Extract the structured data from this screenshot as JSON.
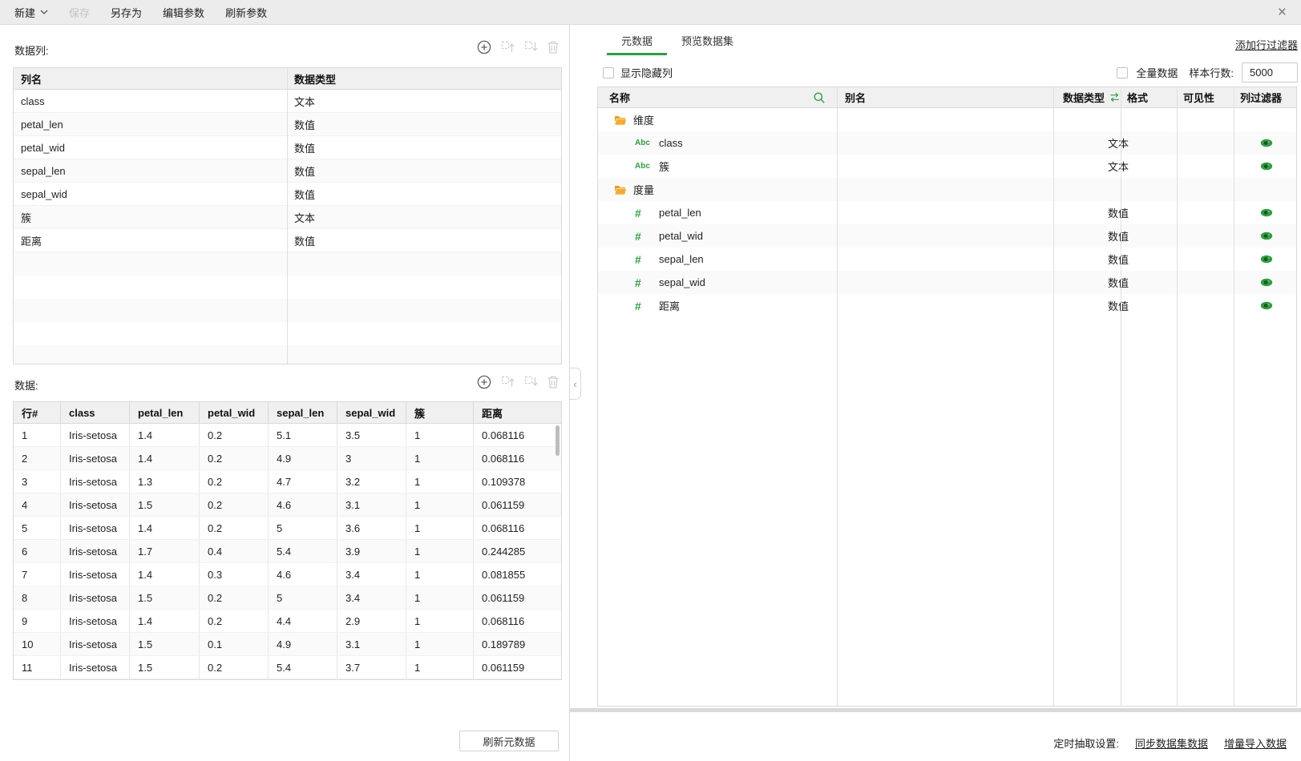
{
  "colors": {
    "accent_green": "#2aa13e",
    "folder_orange": "#f5a31c",
    "topbar_bg": "#ececec",
    "header_bg": "#f0f0f0"
  },
  "topbar": {
    "new_label": "新建",
    "save_label": "保存",
    "save_as_label": "另存为",
    "edit_params_label": "编辑参数",
    "refresh_params_label": "刷新参数",
    "close_glyph": "×"
  },
  "left": {
    "columns_section": {
      "label": "数据列:",
      "headers": [
        "列名",
        "数据类型"
      ],
      "rows": [
        [
          "class",
          "文本"
        ],
        [
          "petal_len",
          "数值"
        ],
        [
          "petal_wid",
          "数值"
        ],
        [
          "sepal_len",
          "数值"
        ],
        [
          "sepal_wid",
          "数值"
        ],
        [
          "簇",
          "文本"
        ],
        [
          "距离",
          "数值"
        ]
      ]
    },
    "data_section": {
      "label": "数据:",
      "headers": [
        "行#",
        "class",
        "petal_len",
        "petal_wid",
        "sepal_len",
        "sepal_wid",
        "簇",
        "距离"
      ],
      "rows": [
        [
          "1",
          "Iris-setosa",
          "1.4",
          "0.2",
          "5.1",
          "3.5",
          "1",
          "0.068116"
        ],
        [
          "2",
          "Iris-setosa",
          "1.4",
          "0.2",
          "4.9",
          "3",
          "1",
          "0.068116"
        ],
        [
          "3",
          "Iris-setosa",
          "1.3",
          "0.2",
          "4.7",
          "3.2",
          "1",
          "0.109378"
        ],
        [
          "4",
          "Iris-setosa",
          "1.5",
          "0.2",
          "4.6",
          "3.1",
          "1",
          "0.061159"
        ],
        [
          "5",
          "Iris-setosa",
          "1.4",
          "0.2",
          "5",
          "3.6",
          "1",
          "0.068116"
        ],
        [
          "6",
          "Iris-setosa",
          "1.7",
          "0.4",
          "5.4",
          "3.9",
          "1",
          "0.244285"
        ],
        [
          "7",
          "Iris-setosa",
          "1.4",
          "0.3",
          "4.6",
          "3.4",
          "1",
          "0.081855"
        ],
        [
          "8",
          "Iris-setosa",
          "1.5",
          "0.2",
          "5",
          "3.4",
          "1",
          "0.061159"
        ],
        [
          "9",
          "Iris-setosa",
          "1.4",
          "0.2",
          "4.4",
          "2.9",
          "1",
          "0.068116"
        ],
        [
          "10",
          "Iris-setosa",
          "1.5",
          "0.1",
          "4.9",
          "3.1",
          "1",
          "0.189789"
        ],
        [
          "11",
          "Iris-setosa",
          "1.5",
          "0.2",
          "5.4",
          "3.7",
          "1",
          "0.061159"
        ]
      ]
    },
    "refresh_metadata_label": "刷新元数据"
  },
  "right": {
    "tabs": {
      "metadata": "元数据",
      "preview": "预览数据集"
    },
    "add_row_filter_label": "添加行过滤器",
    "show_hidden_label": "显示隐藏列",
    "full_data_label": "全量数据",
    "sample_rows_label": "样本行数:",
    "sample_rows_value": "5000",
    "grid_headers": {
      "name": "名称",
      "alias": "别名",
      "dtype": "数据类型",
      "format": "格式",
      "visibility": "可见性",
      "col_filter": "列过滤器"
    },
    "tree": [
      {
        "type": "folder",
        "label": "维度"
      },
      {
        "type": "text",
        "label": "class",
        "dtype": "文本"
      },
      {
        "type": "text",
        "label": "簇",
        "dtype": "文本"
      },
      {
        "type": "folder",
        "label": "度量"
      },
      {
        "type": "number",
        "label": "petal_len",
        "dtype": "数值"
      },
      {
        "type": "number",
        "label": "petal_wid",
        "dtype": "数值"
      },
      {
        "type": "number",
        "label": "sepal_len",
        "dtype": "数值"
      },
      {
        "type": "number",
        "label": "sepal_wid",
        "dtype": "数值"
      },
      {
        "type": "number",
        "label": "距离",
        "dtype": "数值"
      }
    ],
    "footer": {
      "schedule_label": "定时抽取设置:",
      "sync_link": "同步数据集数据",
      "incremental_link": "增量导入数据"
    }
  },
  "icons": {
    "text_type_glyph": "Abc",
    "number_type_glyph": "#",
    "collapse_glyph": "‹"
  }
}
